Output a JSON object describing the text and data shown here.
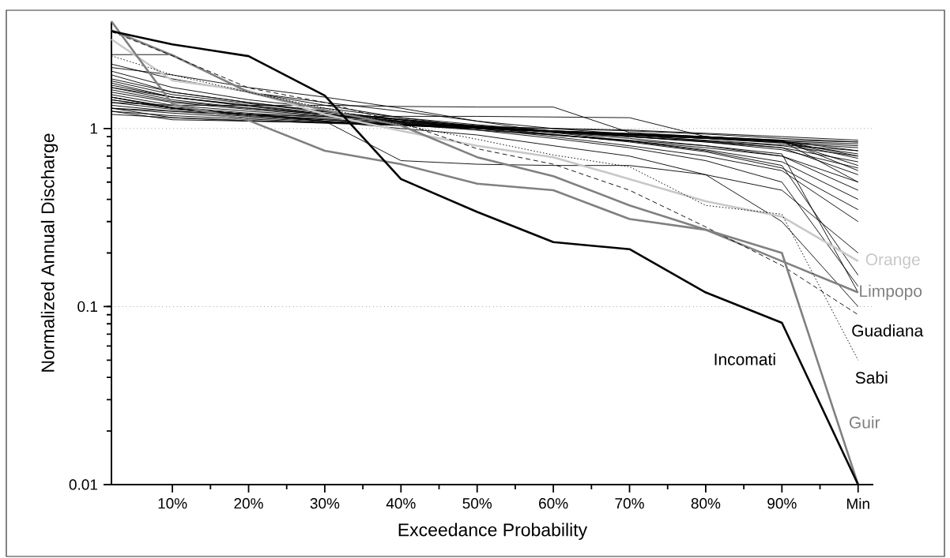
{
  "chart_data": {
    "type": "line",
    "xlabel": "Exceedance Probability",
    "ylabel": "Normalized Annual Discharge",
    "x": [
      2,
      10,
      20,
      30,
      40,
      50,
      60,
      70,
      80,
      90,
      100
    ],
    "xlim": [
      2,
      102
    ],
    "xticks": [
      {
        "value": 10,
        "label": "10%"
      },
      {
        "value": 20,
        "label": "20%"
      },
      {
        "value": 30,
        "label": "30%"
      },
      {
        "value": 40,
        "label": "40%"
      },
      {
        "value": 50,
        "label": "50%"
      },
      {
        "value": 60,
        "label": "60%"
      },
      {
        "value": 70,
        "label": "70%"
      },
      {
        "value": 80,
        "label": "80%"
      },
      {
        "value": 90,
        "label": "90%"
      },
      {
        "value": 100,
        "label": "Min"
      }
    ],
    "ylim": [
      0.01,
      4
    ],
    "yticks": [
      0.01,
      0.1,
      1
    ],
    "log": "y",
    "grid": "y",
    "series": [
      {
        "name": "Orange",
        "color": "#c8c8c8",
        "line_style": "solid",
        "values": [
          3.17,
          1.86,
          1.63,
          1.2,
          0.97,
          0.8,
          0.69,
          0.52,
          0.39,
          0.32,
          0.18
        ]
      },
      {
        "name": "Limpopo",
        "color": "#808080",
        "line_style": "solid",
        "values": [
          3.57,
          2.58,
          1.6,
          1.27,
          1.04,
          0.69,
          0.54,
          0.37,
          0.27,
          0.18,
          0.12
        ]
      },
      {
        "name": "Guadiana",
        "color": "#000000",
        "line_style": "dashed",
        "values": [
          3.5,
          2.56,
          1.69,
          1.4,
          1.08,
          0.77,
          0.63,
          0.45,
          0.28,
          0.17,
          0.09
        ]
      },
      {
        "name": "Sabi",
        "color": "#000000",
        "line_style": "dotted",
        "values": [
          2.56,
          2.0,
          1.6,
          1.3,
          1.05,
          0.87,
          0.71,
          0.61,
          0.37,
          0.33,
          0.05
        ]
      },
      {
        "name": "Guir",
        "color": "#808080",
        "line_style": "solid",
        "values": [
          4.0,
          1.37,
          1.11,
          0.75,
          0.63,
          0.49,
          0.45,
          0.31,
          0.27,
          0.2,
          0.01
        ]
      },
      {
        "name": "Incomati",
        "color": "#000000",
        "line_style": "solid",
        "values": [
          3.52,
          2.97,
          2.55,
          1.53,
          0.52,
          0.34,
          0.23,
          0.21,
          0.12,
          0.081,
          0.01
        ]
      },
      {
        "color": "#000000",
        "values": [
          2.3,
          1.9,
          1.6,
          1.4,
          1.25,
          1.1,
          1.0,
          0.93,
          0.85,
          0.78,
          0.55
        ]
      },
      {
        "color": "#000000",
        "values": [
          2.1,
          1.7,
          1.45,
          1.3,
          1.15,
          1.05,
          0.97,
          0.9,
          0.84,
          0.76,
          0.6
        ]
      },
      {
        "color": "#000000",
        "values": [
          1.9,
          1.6,
          1.4,
          1.25,
          1.12,
          1.04,
          0.96,
          0.9,
          0.85,
          0.8,
          0.7
        ]
      },
      {
        "color": "#000000",
        "values": [
          1.8,
          1.5,
          1.35,
          1.22,
          1.12,
          1.03,
          0.95,
          0.9,
          0.84,
          0.78,
          0.65
        ]
      },
      {
        "color": "#000000",
        "values": [
          1.7,
          1.45,
          1.3,
          1.2,
          1.1,
          1.02,
          0.96,
          0.91,
          0.86,
          0.81,
          0.75
        ]
      },
      {
        "color": "#000000",
        "values": [
          1.6,
          1.4,
          1.28,
          1.18,
          1.1,
          1.02,
          0.97,
          0.92,
          0.88,
          0.83,
          0.78
        ]
      },
      {
        "color": "#000000",
        "values": [
          1.55,
          1.35,
          1.25,
          1.17,
          1.09,
          1.02,
          0.97,
          0.93,
          0.89,
          0.85,
          0.82
        ]
      },
      {
        "color": "#000000",
        "values": [
          1.5,
          1.32,
          1.22,
          1.15,
          1.08,
          1.02,
          0.97,
          0.93,
          0.9,
          0.86,
          0.84
        ]
      },
      {
        "color": "#000000",
        "values": [
          1.45,
          1.3,
          1.2,
          1.13,
          1.07,
          1.01,
          0.96,
          0.92,
          0.88,
          0.84,
          0.8
        ]
      },
      {
        "color": "#000000",
        "values": [
          1.4,
          1.28,
          1.18,
          1.12,
          1.06,
          1.01,
          0.96,
          0.92,
          0.88,
          0.83,
          0.72
        ]
      },
      {
        "color": "#000000",
        "values": [
          1.35,
          1.25,
          1.17,
          1.1,
          1.05,
          1.0,
          0.96,
          0.92,
          0.88,
          0.84,
          0.68
        ]
      },
      {
        "color": "#000000",
        "values": [
          1.3,
          1.22,
          1.15,
          1.09,
          1.05,
          1.0,
          0.96,
          0.93,
          0.89,
          0.85,
          0.62
        ]
      },
      {
        "color": "#000000",
        "values": [
          1.25,
          1.18,
          1.13,
          1.08,
          1.04,
          1.0,
          0.97,
          0.93,
          0.9,
          0.86,
          0.58
        ]
      },
      {
        "color": "#000000",
        "values": [
          1.2,
          1.15,
          1.11,
          1.07,
          1.04,
          1.0,
          0.97,
          0.94,
          0.9,
          0.85,
          0.5
        ]
      },
      {
        "color": "#000000",
        "values": [
          1.65,
          1.42,
          1.3,
          1.2,
          1.12,
          1.03,
          0.95,
          0.88,
          0.8,
          0.7,
          0.45
        ]
      },
      {
        "color": "#000000",
        "values": [
          1.75,
          1.5,
          1.33,
          1.2,
          1.1,
          1.0,
          0.92,
          0.85,
          0.76,
          0.65,
          0.4
        ]
      },
      {
        "color": "#000000",
        "values": [
          1.85,
          1.55,
          1.38,
          1.24,
          1.13,
          1.02,
          0.93,
          0.84,
          0.74,
          0.6,
          0.35
        ]
      },
      {
        "color": "#000000",
        "values": [
          2.0,
          1.6,
          1.4,
          1.25,
          1.12,
          1.0,
          0.9,
          0.8,
          0.7,
          0.58,
          0.3
        ]
      },
      {
        "color": "#000000",
        "values": [
          2.6,
          2.6,
          1.6,
          1.35,
          1.15,
          1.02,
          0.92,
          0.85,
          0.78,
          0.7,
          0.5
        ]
      },
      {
        "color": "#000000",
        "values": [
          2.2,
          2.0,
          1.7,
          1.5,
          1.3,
          1.1,
          0.95,
          0.85,
          0.75,
          0.62,
          0.15
        ]
      },
      {
        "color": "#000000",
        "values": [
          1.5,
          1.3,
          1.2,
          1.12,
          1.05,
          0.98,
          0.92,
          0.86,
          0.8,
          0.72,
          0.12
        ]
      },
      {
        "color": "#000000",
        "values": [
          1.4,
          1.35,
          1.35,
          1.35,
          1.33,
          1.32,
          1.32,
          0.95,
          0.9,
          0.85,
          0.7
        ]
      },
      {
        "color": "#000000",
        "values": [
          1.3,
          1.25,
          1.2,
          1.17,
          1.17,
          1.17,
          1.16,
          1.15,
          0.9,
          0.85,
          0.75
        ]
      },
      {
        "color": "#000000",
        "values": [
          1.5,
          1.3,
          1.2,
          1.1,
          0.66,
          0.63,
          0.62,
          0.62,
          0.55,
          0.45,
          0.2
        ]
      },
      {
        "color": "#000000",
        "values": [
          1.45,
          1.3,
          1.2,
          1.1,
          1.0,
          0.92,
          0.8,
          0.7,
          0.55,
          0.3,
          0.1
        ]
      },
      {
        "color": "#000000",
        "values": [
          1.7,
          1.5,
          1.35,
          1.2,
          1.08,
          0.98,
          0.88,
          0.78,
          0.66,
          0.5,
          0.13
        ]
      },
      {
        "color": "#000000",
        "values": [
          1.3,
          1.15,
          1.1,
          1.08,
          1.05,
          1.02,
          1.0,
          0.97,
          0.93,
          0.88,
          0.84
        ]
      },
      {
        "color": "#000000",
        "values": [
          1.25,
          1.12,
          1.1,
          1.08,
          1.06,
          1.03,
          1.0,
          0.98,
          0.94,
          0.9,
          0.86
        ]
      }
    ]
  }
}
